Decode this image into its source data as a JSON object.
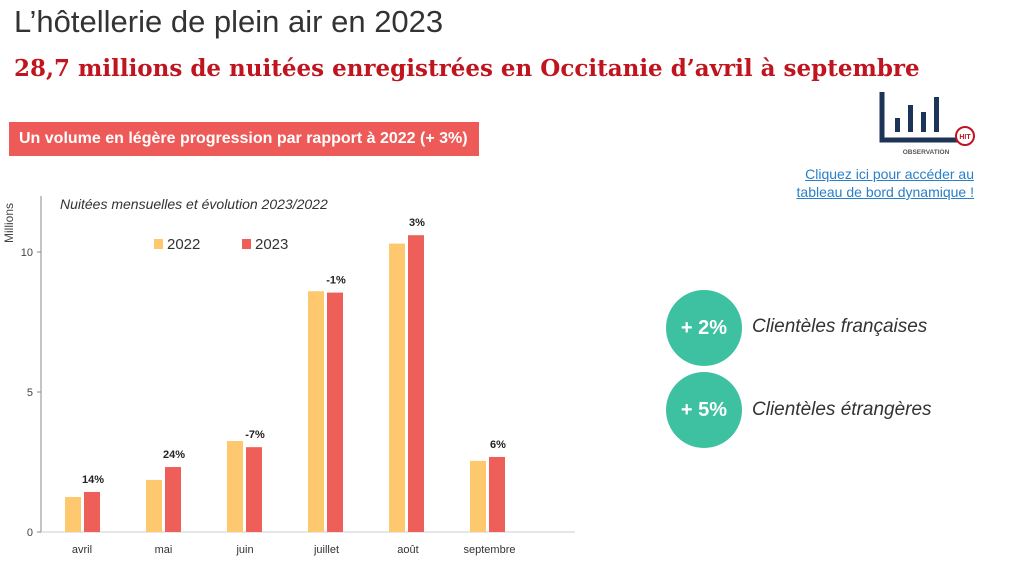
{
  "header": {
    "title": "L’hôtellerie de plein air en 2023",
    "subtitle": "28,7 millions de nuitées enregistrées en Occitanie d’avril à septembre"
  },
  "banner": "Un volume en légère progression par rapport à 2022 (+ 3%)",
  "logo": {
    "text": "OBSERVATION",
    "badge": "HIT"
  },
  "link": {
    "line1": "Cliquez ici pour accéder au",
    "line2": "tableau de bord dynamique !"
  },
  "kpis": [
    {
      "value": "+ 2%",
      "label": "Clientèles françaises"
    },
    {
      "value": "+ 5%",
      "label": "Clientèles étrangères"
    }
  ],
  "colors": {
    "y2022": "#fec86f",
    "y2023": "#ef5f5a",
    "kpi": "#3dc1a0",
    "banner": "#ee5a57"
  },
  "chart_data": {
    "type": "bar",
    "title": "Nuitées mensuelles et évolution 2023/2022",
    "ylabel": "Millions",
    "ylim": [
      0,
      12
    ],
    "yticks": [
      0,
      5,
      10
    ],
    "categories": [
      "avril",
      "mai",
      "juin",
      "juillet",
      "août",
      "septembre"
    ],
    "series": [
      {
        "name": "2022",
        "values": [
          1.25,
          1.86,
          3.25,
          8.6,
          10.3,
          2.54
        ]
      },
      {
        "name": "2023",
        "values": [
          1.43,
          2.32,
          3.03,
          8.55,
          10.6,
          2.68
        ]
      }
    ],
    "data_labels": [
      "14%",
      "24%",
      "-7%",
      "-1%",
      "3%",
      "6%"
    ],
    "legend": "top-center"
  }
}
